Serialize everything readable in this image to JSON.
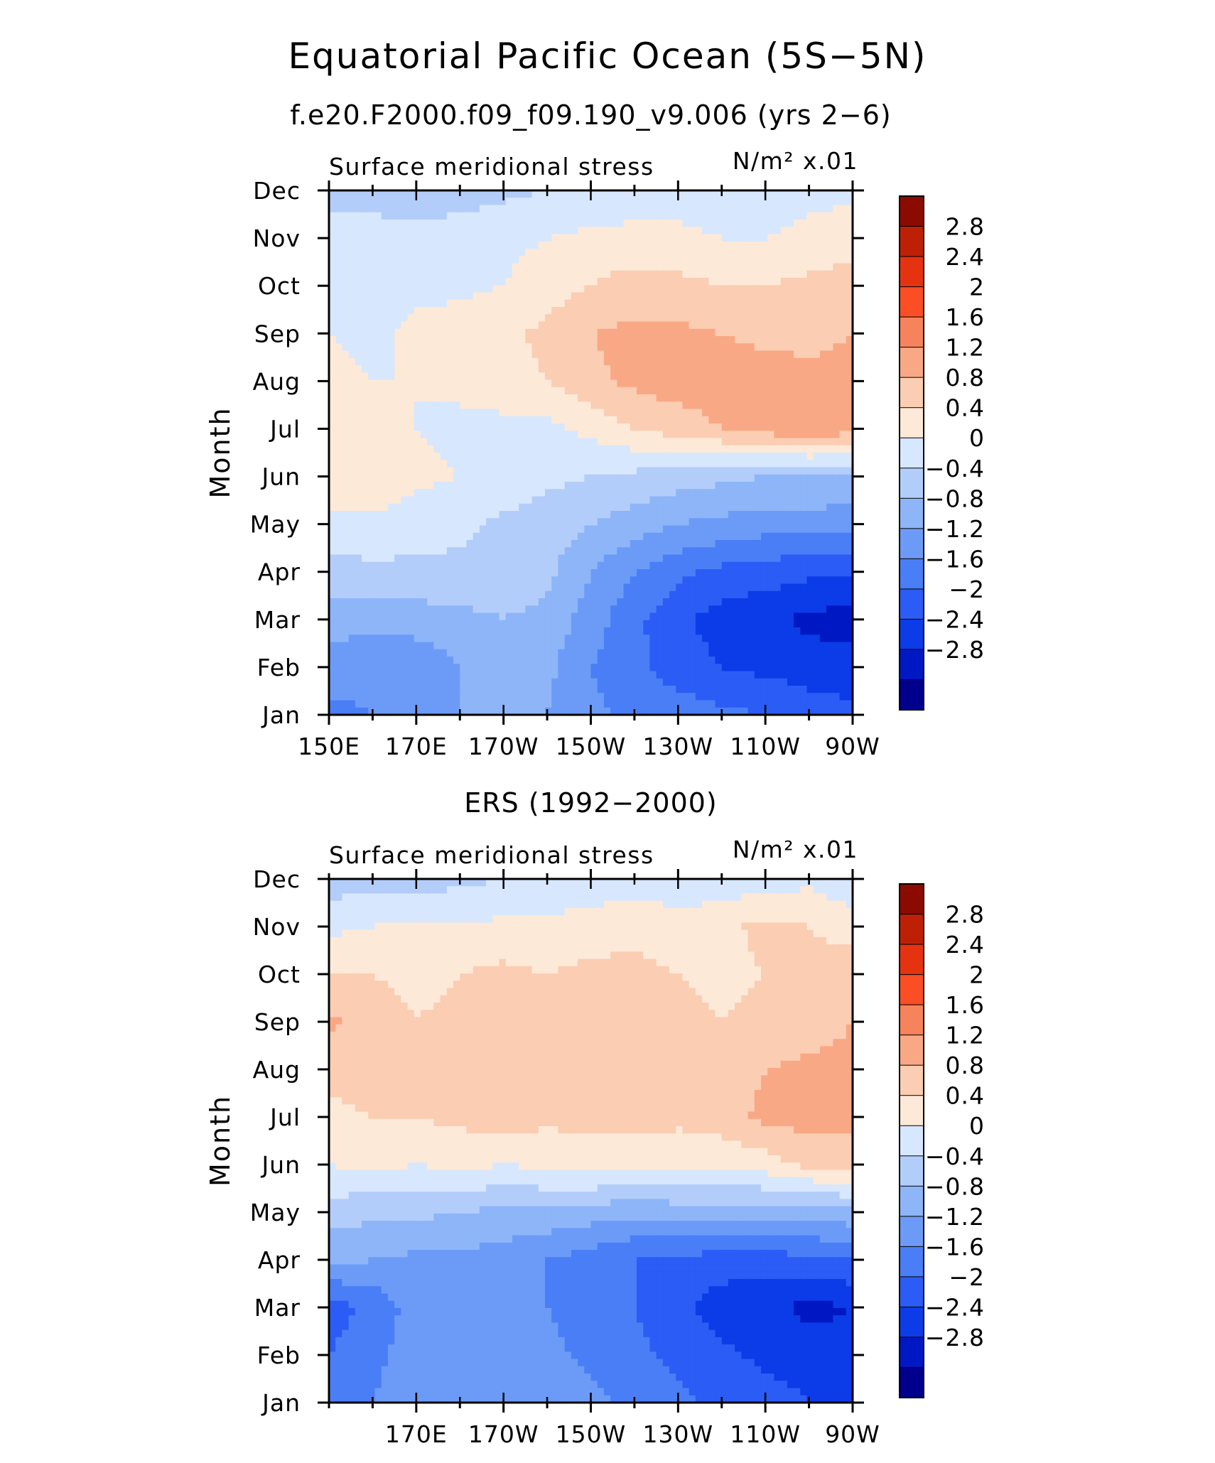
{
  "title": "Equatorial Pacific Ocean (5S−5N)",
  "colors": [
    "#00008c",
    "#0018c4",
    "#0b3ce7",
    "#2b5cf5",
    "#4a7ef7",
    "#6c9bf7",
    "#8db5f8",
    "#b3cdfa",
    "#d7e7fd",
    "#fde9d8",
    "#fbcdb2",
    "#f9a885",
    "#f6835b",
    "#fa4e24",
    "#e53311",
    "#be2006",
    "#8c0b00"
  ],
  "colorbar_labels": [
    "2.8",
    "2.4",
    "2",
    "1.6",
    "1.2",
    "0.8",
    "0.4",
    "0",
    "−0.4",
    "−0.8",
    "−1.2",
    "−1.6",
    "−2",
    "−2.4",
    "−2.8"
  ],
  "chart_data": [
    {
      "type": "heatmap",
      "title": "f.e20.F2000.f09_f09.190_v9.006 (yrs 2−6)",
      "field_label": "Surface meridional stress",
      "units_label": "N/m² x.01",
      "ylabel": "Month",
      "xlim": [
        150,
        270
      ],
      "x_ticks": [
        150,
        170,
        190,
        210,
        230,
        250,
        270
      ],
      "x_tick_labels": [
        "150E",
        "170E",
        "170W",
        "150W",
        "130W",
        "110W",
        "90W"
      ],
      "y_tick_labels": [
        "Jan",
        "Feb",
        "Mar",
        "Apr",
        "May",
        "Jun",
        "Jul",
        "Aug",
        "Sep",
        "Oct",
        "Nov",
        "Dec"
      ],
      "levels": [
        -2.8,
        -2.4,
        -2.0,
        -1.6,
        -1.2,
        -0.8,
        -0.4,
        0,
        0.4,
        0.8,
        1.2,
        1.6,
        2.0,
        2.4,
        2.8
      ],
      "x": [
        150,
        160,
        170,
        180,
        190,
        200,
        210,
        220,
        230,
        240,
        250,
        260,
        270
      ],
      "z": [
        [
          -1.3,
          -1.2,
          -1.0,
          -0.8,
          -0.6,
          -0.8,
          -1.1,
          -1.3,
          -1.4,
          -1.5,
          -1.6,
          -1.8,
          -1.9
        ],
        [
          -1.0,
          -1.1,
          -1.1,
          -0.8,
          -0.6,
          -0.7,
          -1.2,
          -1.5,
          -1.8,
          -2.0,
          -2.1,
          -2.2,
          -2.2
        ],
        [
          -0.6,
          -0.7,
          -0.6,
          -0.5,
          -0.4,
          -0.5,
          -1.0,
          -1.5,
          -1.9,
          -2.2,
          -2.3,
          -2.5,
          -2.6
        ],
        [
          -0.2,
          -0.1,
          -0.1,
          -0.1,
          -0.2,
          -0.3,
          -0.8,
          -1.2,
          -1.5,
          -1.7,
          -1.8,
          -1.9,
          -1.9
        ],
        [
          0.3,
          0.3,
          0.2,
          0.1,
          -0.1,
          -0.2,
          -0.4,
          -0.6,
          -0.8,
          -0.9,
          -1.0,
          -1.0,
          -1.0
        ],
        [
          0.6,
          0.7,
          0.5,
          0.4,
          0.3,
          0.1,
          0.0,
          -0.1,
          -0.2,
          -0.3,
          -0.4,
          -0.4,
          -0.5
        ],
        [
          0.6,
          0.7,
          0.4,
          0.3,
          0.3,
          0.3,
          0.5,
          0.8,
          1.0,
          1.2,
          1.4,
          1.5,
          1.4
        ],
        [
          0.5,
          0.4,
          0.4,
          0.5,
          0.6,
          0.8,
          1.1,
          1.3,
          1.4,
          1.4,
          1.4,
          1.3,
          1.3
        ],
        [
          0.4,
          0.3,
          0.5,
          0.6,
          0.7,
          0.9,
          1.2,
          1.3,
          1.3,
          1.2,
          1.1,
          1.1,
          1.2
        ],
        [
          0.2,
          0.2,
          0.3,
          0.3,
          0.4,
          0.6,
          0.8,
          1.0,
          0.9,
          0.8,
          0.8,
          0.9,
          1.0
        ],
        [
          0.1,
          0.1,
          0.1,
          0.2,
          0.3,
          0.4,
          0.5,
          0.5,
          0.5,
          0.4,
          0.4,
          0.5,
          0.6
        ],
        [
          -0.1,
          -0.1,
          -0.2,
          -0.2,
          -0.1,
          0.0,
          0.1,
          0.2,
          0.2,
          0.2,
          0.2,
          0.3,
          0.3
        ]
      ]
    },
    {
      "type": "heatmap",
      "title": "ERS (1992−2000)",
      "field_label": "Surface meridional stress",
      "units_label": "N/m² x.01",
      "ylabel": "Month",
      "xlim": [
        150,
        270
      ],
      "x_ticks": [
        170,
        190,
        210,
        230,
        250,
        270
      ],
      "x_tick_labels": [
        "170E",
        "170W",
        "150W",
        "130W",
        "110W",
        "90W"
      ],
      "y_tick_labels": [
        "Jan",
        "Feb",
        "Mar",
        "Apr",
        "May",
        "Jun",
        "Jul",
        "Aug",
        "Sep",
        "Oct",
        "Nov",
        "Dec"
      ],
      "levels": [
        -2.8,
        -2.4,
        -2.0,
        -1.6,
        -1.2,
        -0.8,
        -0.4,
        0,
        0.4,
        0.8,
        1.2,
        1.6,
        2.0,
        2.4,
        2.8
      ],
      "x": [
        150,
        160,
        170,
        180,
        190,
        200,
        210,
        220,
        230,
        240,
        250,
        260,
        270
      ],
      "z": [
        [
          -1.5,
          -1.2,
          -1.0,
          -0.9,
          -0.8,
          -0.9,
          -1.1,
          -1.3,
          -1.5,
          -1.7,
          -1.8,
          -2.0,
          -2.1
        ],
        [
          -1.6,
          -1.3,
          -1.0,
          -1.1,
          -0.9,
          -1.1,
          -1.3,
          -1.5,
          -1.7,
          -1.9,
          -2.1,
          -2.2,
          -2.3
        ],
        [
          -1.8,
          -1.5,
          -1.0,
          -1.1,
          -1.0,
          -1.2,
          -1.4,
          -1.6,
          -1.9,
          -2.2,
          -2.3,
          -2.5,
          -2.4
        ],
        [
          -0.7,
          -0.8,
          -0.9,
          -0.9,
          -1.0,
          -1.2,
          -1.4,
          -1.6,
          -1.7,
          -1.8,
          -1.8,
          -1.7,
          -1.6
        ],
        [
          -0.2,
          -0.3,
          -0.3,
          -0.4,
          -0.5,
          -0.5,
          -0.6,
          -0.7,
          -0.6,
          -0.6,
          -0.6,
          -0.6,
          -0.5
        ],
        [
          0.4,
          0.5,
          0.4,
          0.5,
          0.4,
          0.5,
          0.6,
          0.5,
          0.5,
          0.5,
          0.6,
          0.9,
          1.0
        ],
        [
          0.7,
          0.8,
          0.8,
          0.9,
          1.0,
          0.9,
          0.9,
          1.0,
          0.9,
          1.0,
          1.3,
          1.4,
          1.3
        ],
        [
          0.9,
          1.0,
          0.9,
          1.0,
          1.1,
          1.2,
          1.1,
          1.1,
          1.0,
          1.0,
          1.2,
          1.3,
          1.3
        ],
        [
          1.3,
          1.0,
          0.8,
          0.9,
          1.0,
          1.1,
          1.0,
          1.0,
          0.9,
          0.8,
          0.9,
          1.0,
          1.2
        ],
        [
          0.8,
          0.8,
          0.7,
          0.8,
          0.9,
          0.8,
          0.9,
          0.9,
          0.8,
          0.7,
          0.8,
          0.9,
          1.1
        ],
        [
          0.3,
          0.4,
          0.5,
          0.4,
          0.5,
          0.5,
          0.6,
          0.7,
          0.6,
          0.7,
          0.9,
          0.8,
          0.6
        ],
        [
          -0.2,
          -0.2,
          -0.2,
          -0.1,
          0.0,
          0.1,
          0.1,
          0.2,
          0.1,
          0.1,
          0.2,
          0.3,
          0.1
        ]
      ]
    }
  ]
}
